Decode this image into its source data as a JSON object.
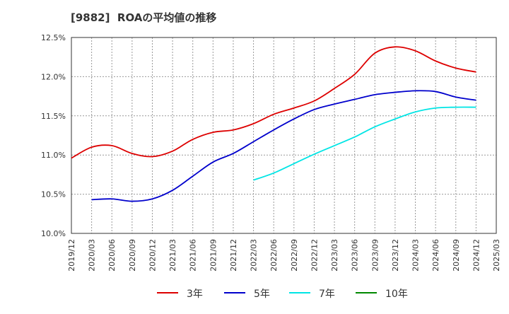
{
  "chart_data": {
    "type": "line",
    "title": "[9882]  ROAの平均値の推移",
    "xlabel": "",
    "ylabel": "",
    "ylim": [
      10.0,
      12.5
    ],
    "yticks": [
      "10.0%",
      "10.5%",
      "11.0%",
      "11.5%",
      "12.0%",
      "12.5%"
    ],
    "ytick_values": [
      10.0,
      10.5,
      11.0,
      11.5,
      12.0,
      12.5
    ],
    "categories": [
      "2019/12",
      "2020/03",
      "2020/06",
      "2020/09",
      "2020/12",
      "2021/03",
      "2021/06",
      "2021/09",
      "2021/12",
      "2022/03",
      "2022/06",
      "2022/09",
      "2022/12",
      "2023/03",
      "2023/06",
      "2023/09",
      "2023/12",
      "2024/03",
      "2024/06",
      "2024/09",
      "2024/12",
      "2025/03"
    ],
    "grid": true,
    "legend_position": "bottom",
    "series": [
      {
        "name": "3年",
        "color": "#dd0000",
        "values": [
          10.96,
          11.1,
          11.12,
          11.02,
          10.98,
          11.05,
          11.2,
          11.29,
          11.32,
          11.4,
          11.52,
          11.6,
          11.69,
          11.85,
          12.03,
          12.3,
          12.38,
          12.33,
          12.2,
          12.11,
          12.06,
          null
        ]
      },
      {
        "name": "5年",
        "color": "#0000cc",
        "values": [
          null,
          10.43,
          10.44,
          10.41,
          10.44,
          10.55,
          10.73,
          10.91,
          11.02,
          11.17,
          11.32,
          11.46,
          11.58,
          11.65,
          11.71,
          11.77,
          11.8,
          11.82,
          11.81,
          11.74,
          11.7,
          null
        ]
      },
      {
        "name": "7年",
        "color": "#00e5e5",
        "values": [
          null,
          null,
          null,
          null,
          null,
          null,
          null,
          null,
          null,
          10.68,
          10.77,
          10.89,
          11.01,
          11.12,
          11.23,
          11.36,
          11.46,
          11.55,
          11.6,
          11.61,
          11.61,
          null
        ]
      },
      {
        "name": "10年",
        "color": "#008800",
        "values": [
          null,
          null,
          null,
          null,
          null,
          null,
          null,
          null,
          null,
          null,
          null,
          null,
          null,
          null,
          null,
          null,
          null,
          null,
          null,
          null,
          null,
          null
        ]
      }
    ]
  }
}
